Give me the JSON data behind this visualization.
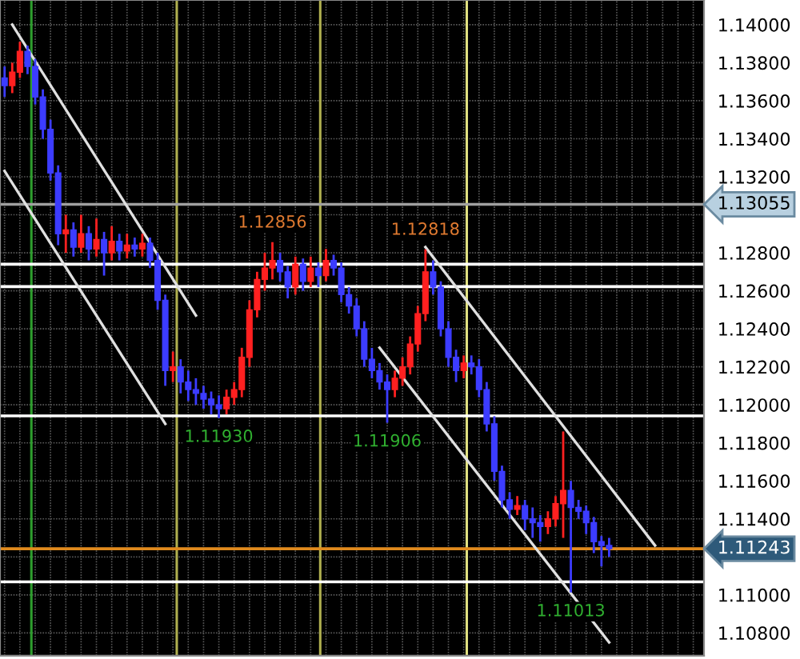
{
  "chart_data": {
    "type": "candlestick",
    "categories": [
      null,
      null,
      null,
      null,
      null,
      null,
      null,
      null,
      null,
      null,
      null,
      null,
      null,
      null,
      null,
      null,
      null,
      null,
      null,
      null,
      null,
      null,
      null,
      null,
      null,
      null,
      null,
      null,
      null,
      null,
      null,
      null,
      null,
      null,
      null,
      null,
      null,
      null,
      null,
      null,
      null,
      null,
      null,
      null,
      null,
      null,
      null,
      null,
      null,
      null,
      null,
      null,
      null,
      null,
      null,
      null,
      null,
      null,
      null,
      null,
      null,
      null,
      null,
      null,
      null,
      null,
      null,
      null,
      null,
      null,
      null,
      null,
      null,
      null,
      null,
      null,
      null,
      null,
      null,
      null,
      null,
      null,
      null,
      null,
      null,
      null,
      null,
      null,
      null,
      null,
      null,
      null
    ],
    "ohlc": [
      [
        1.1372,
        1.1378,
        1.1362,
        1.1368
      ],
      [
        1.1368,
        1.138,
        1.1364,
        1.1375
      ],
      [
        1.1375,
        1.1391,
        1.1372,
        1.1386
      ],
      [
        1.1386,
        1.1389,
        1.1374,
        1.1378
      ],
      [
        1.1378,
        1.1382,
        1.1358,
        1.1362
      ],
      [
        1.1362,
        1.1366,
        1.134,
        1.1345
      ],
      [
        1.1345,
        1.135,
        1.1318,
        1.1322
      ],
      [
        1.1322,
        1.1326,
        1.1284,
        1.129
      ],
      [
        1.129,
        1.13,
        1.128,
        1.1292
      ],
      [
        1.1292,
        1.1296,
        1.1278,
        1.1283
      ],
      [
        1.1283,
        1.13,
        1.128,
        1.129
      ],
      [
        1.129,
        1.1294,
        1.1276,
        1.1282
      ],
      [
        1.1282,
        1.1298,
        1.1278,
        1.1287
      ],
      [
        1.1287,
        1.1291,
        1.1268,
        1.128
      ],
      [
        1.128,
        1.1294,
        1.1276,
        1.1286
      ],
      [
        1.1286,
        1.129,
        1.1276,
        1.1281
      ],
      [
        1.1281,
        1.129,
        1.1277,
        1.1284
      ],
      [
        1.1284,
        1.1288,
        1.1278,
        1.1282
      ],
      [
        1.1282,
        1.129,
        1.1278,
        1.1285
      ],
      [
        1.1285,
        1.1288,
        1.1272,
        1.1276
      ],
      [
        1.1276,
        1.128,
        1.125,
        1.1255
      ],
      [
        1.1255,
        1.1258,
        1.121,
        1.1218
      ],
      [
        1.1218,
        1.1228,
        1.1212,
        1.122
      ],
      [
        1.122,
        1.1224,
        1.1206,
        1.1212
      ],
      [
        1.1212,
        1.1218,
        1.1202,
        1.1208
      ],
      [
        1.1208,
        1.1214,
        1.12,
        1.1206
      ],
      [
        1.1206,
        1.121,
        1.1198,
        1.1203
      ],
      [
        1.1203,
        1.1207,
        1.1195,
        1.12
      ],
      [
        1.12,
        1.1205,
        1.1193,
        1.1198
      ],
      [
        1.1198,
        1.1208,
        1.1195,
        1.1204
      ],
      [
        1.1204,
        1.1212,
        1.12,
        1.1208
      ],
      [
        1.1208,
        1.123,
        1.1204,
        1.1225
      ],
      [
        1.1225,
        1.1255,
        1.122,
        1.125
      ],
      [
        1.125,
        1.127,
        1.1246,
        1.1266
      ],
      [
        1.1266,
        1.128,
        1.126,
        1.1272
      ],
      [
        1.1272,
        1.12856,
        1.1266,
        1.1276
      ],
      [
        1.1276,
        1.128,
        1.1265,
        1.127
      ],
      [
        1.127,
        1.1273,
        1.1256,
        1.1262
      ],
      [
        1.1262,
        1.1278,
        1.1258,
        1.1274
      ],
      [
        1.1274,
        1.1277,
        1.126,
        1.1265
      ],
      [
        1.1265,
        1.1278,
        1.1262,
        1.1272
      ],
      [
        1.1272,
        1.1275,
        1.1262,
        1.1268
      ],
      [
        1.1268,
        1.1282,
        1.1265,
        1.1276
      ],
      [
        1.1276,
        1.1279,
        1.1268,
        1.1272
      ],
      [
        1.1272,
        1.1275,
        1.1254,
        1.1258
      ],
      [
        1.1258,
        1.1262,
        1.1248,
        1.1252
      ],
      [
        1.1252,
        1.1256,
        1.1236,
        1.124
      ],
      [
        1.124,
        1.1244,
        1.122,
        1.1224
      ],
      [
        1.1224,
        1.123,
        1.1214,
        1.1218
      ],
      [
        1.1218,
        1.1222,
        1.1208,
        1.1212
      ],
      [
        1.1212,
        1.1216,
        1.11906,
        1.1208
      ],
      [
        1.1208,
        1.1218,
        1.1204,
        1.1214
      ],
      [
        1.1214,
        1.1225,
        1.121,
        1.122
      ],
      [
        1.122,
        1.1236,
        1.1216,
        1.1232
      ],
      [
        1.1232,
        1.1252,
        1.1228,
        1.1248
      ],
      [
        1.1248,
        1.12818,
        1.1244,
        1.127
      ],
      [
        1.127,
        1.1276,
        1.1258,
        1.1262
      ],
      [
        1.1262,
        1.1265,
        1.1236,
        1.124
      ],
      [
        1.124,
        1.1244,
        1.122,
        1.1225
      ],
      [
        1.1225,
        1.1229,
        1.1212,
        1.1218
      ],
      [
        1.1218,
        1.1226,
        1.1214,
        1.1222
      ],
      [
        1.1222,
        1.1226,
        1.1216,
        1.122
      ],
      [
        1.122,
        1.1224,
        1.1204,
        1.1208
      ],
      [
        1.1208,
        1.1212,
        1.1186,
        1.119
      ],
      [
        1.119,
        1.1194,
        1.116,
        1.1165
      ],
      [
        1.1165,
        1.1168,
        1.1146,
        1.115
      ],
      [
        1.115,
        1.1154,
        1.114,
        1.1145
      ],
      [
        1.1145,
        1.1152,
        1.1142,
        1.1147
      ],
      [
        1.1147,
        1.115,
        1.1134,
        1.114
      ],
      [
        1.114,
        1.1146,
        1.113,
        1.1138
      ],
      [
        1.1138,
        1.1142,
        1.1128,
        1.1136
      ],
      [
        1.1136,
        1.1144,
        1.1132,
        1.114
      ],
      [
        1.114,
        1.1152,
        1.1136,
        1.1148
      ],
      [
        1.1148,
        1.1186,
        1.113,
        1.1155
      ],
      [
        1.1155,
        1.116,
        1.11013,
        1.1146
      ],
      [
        1.1146,
        1.115,
        1.114,
        1.1144
      ],
      [
        1.1144,
        1.1147,
        1.1132,
        1.1138
      ],
      [
        1.1138,
        1.1141,
        1.1122,
        1.1128
      ],
      [
        1.1128,
        1.1131,
        1.1115,
        1.1126
      ],
      [
        1.1126,
        1.113,
        1.112,
        1.11243
      ],
      null,
      null,
      null,
      null,
      null,
      null,
      null,
      null,
      null,
      null,
      null,
      null
    ],
    "colors": [
      "#3c3cff",
      "#ff2020",
      "#ff2020",
      "#3c3cff",
      "#3c3cff",
      "#3c3cff",
      "#3c3cff",
      "#3c3cff",
      "#ff2020",
      "#3c3cff",
      "#ff2020",
      "#3c3cff",
      "#ff2020",
      "#3c3cff",
      "#ff2020",
      "#3c3cff",
      "#ff2020",
      "#3c3cff",
      "#ff2020",
      "#3c3cff",
      "#3c3cff",
      "#3c3cff",
      "#ff2020",
      "#3c3cff",
      "#3c3cff",
      "#3c3cff",
      "#3c3cff",
      "#3c3cff",
      "#3c3cff",
      "#ff2020",
      "#ff2020",
      "#ff2020",
      "#ff2020",
      "#ff2020",
      "#ff2020",
      "#ff2020",
      "#3c3cff",
      "#3c3cff",
      "#ff2020",
      "#3c3cff",
      "#ff2020",
      "#3c3cff",
      "#ff2020",
      "#3c3cff",
      "#3c3cff",
      "#3c3cff",
      "#3c3cff",
      "#3c3cff",
      "#3c3cff",
      "#3c3cff",
      "#3c3cff",
      "#ff2020",
      "#ff2020",
      "#ff2020",
      "#ff2020",
      "#ff2020",
      "#3c3cff",
      "#3c3cff",
      "#3c3cff",
      "#3c3cff",
      "#ff2020",
      "#3c3cff",
      "#3c3cff",
      "#3c3cff",
      "#3c3cff",
      "#3c3cff",
      "#3c3cff",
      "#ff2020",
      "#3c3cff",
      "#3c3cff",
      "#3c3cff",
      "#ff2020",
      "#ff2020",
      "#ff2020",
      "#3c3cff",
      "#3c3cff",
      "#3c3cff",
      "#3c3cff",
      "#3c3cff",
      "#3c3cff",
      null,
      null,
      null,
      null,
      null,
      null,
      null,
      null,
      null,
      null,
      null,
      null
    ],
    "series": [
      {
        "type": "line",
        "values": [
          null,
          1.14,
          null,
          null,
          null,
          null,
          null,
          null,
          null,
          null,
          null,
          null,
          null,
          null,
          null,
          null,
          null,
          null,
          null,
          null,
          null,
          null,
          null,
          null,
          null,
          1.1247,
          null,
          null,
          null,
          null,
          null,
          null,
          null,
          null,
          null,
          null,
          null,
          null,
          null,
          null,
          null,
          null,
          null,
          null,
          null,
          null,
          null,
          null,
          null,
          null,
          null,
          null,
          null,
          null,
          null,
          null,
          null,
          null,
          null,
          null,
          null,
          null,
          null,
          null,
          null,
          null,
          null,
          null,
          null,
          null,
          null,
          null,
          null,
          null,
          null,
          null,
          null,
          null,
          null,
          null,
          null,
          null,
          null,
          null,
          null,
          null,
          null,
          null,
          null,
          null,
          null,
          null
        ],
        "color": "#e0e0e0"
      },
      {
        "type": "line",
        "values": [
          1.1323,
          null,
          null,
          null,
          null,
          null,
          null,
          null,
          null,
          null,
          null,
          null,
          null,
          null,
          null,
          null,
          null,
          null,
          null,
          null,
          null,
          1.119,
          null,
          null,
          null,
          null,
          null,
          null,
          null,
          null,
          null,
          null,
          null,
          null,
          null,
          null,
          null,
          null,
          null,
          null,
          null,
          null,
          null,
          null,
          null,
          null,
          null,
          null,
          null,
          null,
          null,
          null,
          null,
          null,
          null,
          null,
          null,
          null,
          null,
          null,
          null,
          null,
          null,
          null,
          null,
          null,
          null,
          null,
          null,
          null,
          null,
          null,
          null,
          null,
          null,
          null,
          null,
          null,
          null,
          null,
          null,
          null,
          null,
          null,
          null,
          null,
          null,
          null,
          null,
          null,
          null,
          null
        ],
        "color": "#e0e0e0"
      },
      {
        "type": "line",
        "values": [
          null,
          null,
          null,
          null,
          null,
          null,
          null,
          null,
          null,
          null,
          null,
          null,
          null,
          null,
          null,
          null,
          null,
          null,
          null,
          null,
          null,
          null,
          null,
          null,
          null,
          null,
          null,
          null,
          null,
          null,
          null,
          null,
          null,
          null,
          null,
          null,
          null,
          null,
          null,
          null,
          null,
          null,
          null,
          null,
          null,
          null,
          null,
          null,
          null,
          1.123,
          null,
          null,
          null,
          null,
          null,
          null,
          null,
          null,
          null,
          null,
          null,
          null,
          null,
          null,
          null,
          null,
          null,
          null,
          null,
          null,
          null,
          null,
          null,
          null,
          null,
          null,
          null,
          null,
          null,
          1.1075,
          null,
          null,
          null,
          null,
          null,
          null,
          null,
          null,
          null,
          null,
          null,
          null
        ],
        "color": "#e0e0e0"
      },
      {
        "type": "line",
        "values": [
          null,
          null,
          null,
          null,
          null,
          null,
          null,
          null,
          null,
          null,
          null,
          null,
          null,
          null,
          null,
          null,
          null,
          null,
          null,
          null,
          null,
          null,
          null,
          null,
          null,
          null,
          null,
          null,
          null,
          null,
          null,
          null,
          null,
          null,
          null,
          null,
          null,
          null,
          null,
          null,
          null,
          null,
          null,
          null,
          null,
          null,
          null,
          null,
          null,
          null,
          null,
          null,
          null,
          null,
          null,
          1.1283,
          null,
          null,
          null,
          null,
          null,
          null,
          null,
          null,
          null,
          null,
          null,
          null,
          null,
          null,
          null,
          null,
          null,
          null,
          null,
          null,
          null,
          null,
          null,
          null,
          null,
          null,
          null,
          null,
          null,
          1.1126,
          null,
          null,
          null,
          null,
          null,
          null
        ],
        "color": "#e0e0e0"
      }
    ],
    "ylim": [
      1.1068,
      1.1413
    ],
    "yticks": [
      {
        "value": 1.108,
        "label": "1.10800"
      },
      {
        "value": 1.11,
        "label": "1.11000"
      },
      {
        "value": 1.112,
        "label": null
      },
      {
        "value": 1.114,
        "label": "1.11400"
      },
      {
        "value": 1.116,
        "label": "1.11600"
      },
      {
        "value": 1.118,
        "label": "1.11800"
      },
      {
        "value": 1.12,
        "label": "1.12000"
      },
      {
        "value": 1.122,
        "label": "1.12200"
      },
      {
        "value": 1.124,
        "label": "1.12400"
      },
      {
        "value": 1.126,
        "label": "1.12600"
      },
      {
        "value": 1.128,
        "label": "1.12800"
      },
      {
        "value": 1.13,
        "label": null
      },
      {
        "value": 1.132,
        "label": "1.13200"
      },
      {
        "value": 1.134,
        "label": "1.13400"
      },
      {
        "value": 1.136,
        "label": "1.13600"
      },
      {
        "value": 1.138,
        "label": "1.13800"
      },
      {
        "value": 1.14,
        "label": "1.14000"
      }
    ],
    "ref_lines": [
      {
        "axis": "y",
        "value": 1.13055,
        "label": "1.13055",
        "color": "#a0a0a0"
      },
      {
        "axis": "y",
        "value": 1.1274,
        "color": "#ffffff"
      },
      {
        "axis": "y",
        "value": 1.12622,
        "color": "#ffffff"
      },
      {
        "axis": "y",
        "value": 1.11942,
        "color": "#ffffff"
      },
      {
        "axis": "y",
        "value": 1.11243,
        "label": "1.11243",
        "color": "#e08a1e"
      },
      {
        "axis": "y",
        "value": 1.11069,
        "color": "#ffffff"
      }
    ],
    "annotations": [
      {
        "text": "1.12856",
        "y": 1.12856
      },
      {
        "text": "1.12818",
        "y": 1.12818
      },
      {
        "text": "1.11930",
        "y": 1.1193
      },
      {
        "text": "1.11906",
        "y": 1.11906
      },
      {
        "text": "1.11013",
        "y": 1.11013
      }
    ],
    "grid": true,
    "tick_labels": "y"
  }
}
